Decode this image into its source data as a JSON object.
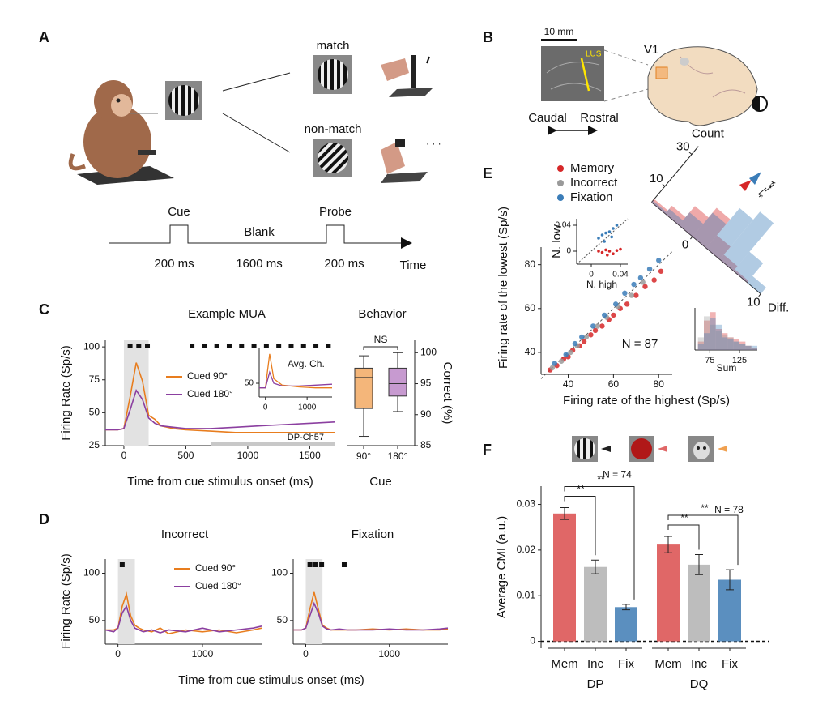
{
  "figure": {
    "panel_labels": [
      "A",
      "B",
      "C",
      "D",
      "E",
      "F"
    ],
    "task": {
      "match": "match",
      "nonmatch": "non-match",
      "cue": "Cue",
      "blank": "Blank",
      "probe": "Probe",
      "cue_duration": "200 ms",
      "blank_duration": "1600 ms",
      "probe_duration": "200 ms",
      "time": "Time"
    },
    "anatomy": {
      "scale": "10 mm",
      "sulcus": "LUS",
      "area": "V1",
      "caudal": "Caudal",
      "rostral": "Rostral"
    }
  },
  "chart_data": [
    {
      "type": "line",
      "title": "Example MUA",
      "xlabel": "Time from cue stimulus onset (ms)",
      "ylabel": "Firing Rate (Sp/s)",
      "annotation": "DP-Ch57",
      "x": [
        -150,
        -50,
        0,
        50,
        100,
        150,
        200,
        250,
        300,
        400,
        500,
        700,
        900,
        1100,
        1300,
        1500,
        1700
      ],
      "series": [
        {
          "name": "Cued 90°",
          "color": "#e87d1e",
          "values": [
            37,
            37,
            38,
            62,
            88,
            74,
            48,
            45,
            40,
            38,
            37,
            36,
            35,
            35,
            35,
            35,
            35
          ]
        },
        {
          "name": "Cued 180°",
          "color": "#8b3fa0",
          "values": [
            37,
            37,
            38,
            52,
            67,
            60,
            46,
            42,
            40,
            39,
            38,
            38,
            39,
            40,
            41,
            42,
            43
          ]
        }
      ],
      "xlim": [
        -150,
        1700
      ],
      "xticks": [
        0,
        500,
        1000,
        1500
      ],
      "ylim": [
        25,
        105
      ],
      "yticks": [
        25,
        50,
        75,
        100
      ],
      "stim_window": [
        0,
        200
      ],
      "sig_x": [
        50,
        120,
        190,
        550,
        650,
        750,
        850,
        950,
        1050,
        1150,
        1250,
        1350,
        1450,
        1550,
        1650
      ],
      "inset": {
        "title": "Avg. Ch.",
        "x": [
          -150,
          0,
          100,
          200,
          400,
          800,
          1200,
          1600
        ],
        "series": [
          {
            "color": "#e87d1e",
            "values": [
              45,
              45,
              82,
              55,
              48,
              46,
              45,
              45
            ]
          },
          {
            "color": "#8b3fa0",
            "values": [
              45,
              45,
              62,
              50,
              47,
              47,
              48,
              49
            ]
          }
        ],
        "xlim": [
          -150,
          1600
        ],
        "xticks": [
          0,
          1000
        ],
        "ylim": [
          35,
          88
        ],
        "yticks": [
          50
        ]
      }
    },
    {
      "type": "box",
      "title": "Behavior",
      "xlabel": "Cue",
      "ylabel": "Correct (%)",
      "annotation": "NS",
      "categories": [
        "90°",
        "180°"
      ],
      "colors": [
        "#f4b67a",
        "#c79ad0"
      ],
      "min": [
        86.5,
        90.5
      ],
      "q1": [
        91,
        93
      ],
      "median": [
        96,
        95
      ],
      "q3": [
        97.5,
        97.5
      ],
      "max": [
        99.5,
        100
      ],
      "ylim": [
        85,
        102
      ],
      "yticks": [
        85,
        90,
        95,
        100
      ]
    },
    {
      "type": "line",
      "title": "Incorrect",
      "xlabel": "Time from cue stimulus onset (ms)",
      "ylabel": "Firing Rate (Sp/s)",
      "x": [
        -150,
        -50,
        0,
        50,
        100,
        150,
        200,
        250,
        300,
        400,
        500,
        600,
        800,
        1000,
        1200,
        1400,
        1600,
        1700
      ],
      "series": [
        {
          "name": "Cued 90°",
          "color": "#e87d1e",
          "values": [
            40,
            40,
            42,
            65,
            78,
            55,
            45,
            42,
            40,
            38,
            42,
            36,
            40,
            38,
            40,
            37,
            40,
            42
          ]
        },
        {
          "name": "Cued 180°",
          "color": "#8b3fa0",
          "values": [
            40,
            38,
            42,
            58,
            65,
            50,
            42,
            40,
            38,
            40,
            37,
            40,
            38,
            42,
            38,
            40,
            42,
            44
          ]
        }
      ],
      "xlim": [
        -150,
        1700
      ],
      "xticks": [
        0,
        1000
      ],
      "ylim": [
        25,
        115
      ],
      "yticks": [
        50,
        100
      ],
      "stim_window": [
        0,
        200
      ],
      "sig_x": [
        50
      ]
    },
    {
      "type": "line",
      "title": "Fixation",
      "x": [
        -150,
        -50,
        0,
        50,
        100,
        150,
        200,
        250,
        300,
        400,
        500,
        600,
        800,
        1000,
        1200,
        1400,
        1600,
        1700
      ],
      "series": [
        {
          "name": "Cued 90°",
          "color": "#e87d1e",
          "values": [
            40,
            40,
            42,
            62,
            80,
            62,
            45,
            42,
            40,
            40,
            40,
            40,
            41,
            40,
            41,
            40,
            40,
            41
          ]
        },
        {
          "name": "Cued 180°",
          "color": "#8b3fa0",
          "values": [
            40,
            40,
            42,
            55,
            68,
            58,
            44,
            41,
            40,
            41,
            40,
            40,
            40,
            41,
            40,
            40,
            41,
            42
          ]
        }
      ],
      "xlim": [
        -150,
        1700
      ],
      "xticks": [
        0,
        1000
      ],
      "ylim": [
        25,
        115
      ],
      "yticks": [
        50,
        100
      ],
      "stim_window": [
        0,
        200
      ],
      "sig_x": [
        50,
        120,
        190,
        460
      ]
    },
    {
      "type": "scatter",
      "xlabel": "Firing rate of the highest (Sp/s)",
      "ylabel": "Firing rate of the lowest (Sp/s)",
      "annotation": "N = 87",
      "series": [
        {
          "name": "Memory",
          "color": "#d62728",
          "x": [
            32,
            35,
            38,
            40,
            42,
            45,
            47,
            50,
            52,
            55,
            58,
            60,
            63,
            66,
            70,
            74,
            78,
            81
          ],
          "y": [
            32,
            34,
            37,
            38,
            41,
            43,
            45,
            48,
            50,
            52,
            55,
            57,
            60,
            62,
            66,
            70,
            73,
            77
          ]
        },
        {
          "name": "Incorrect",
          "color": "#9a9a9a",
          "x": [
            33,
            37,
            41,
            44,
            48,
            53,
            57,
            62,
            68,
            73
          ],
          "y": [
            33,
            36,
            40,
            43,
            47,
            52,
            56,
            61,
            66,
            72
          ]
        },
        {
          "name": "Fixation",
          "color": "#3b7db8",
          "x": [
            34,
            39,
            43,
            46,
            51,
            56,
            61,
            65,
            69,
            72,
            76,
            80
          ],
          "y": [
            35,
            39,
            44,
            47,
            52,
            57,
            62,
            67,
            71,
            74,
            78,
            82
          ]
        }
      ],
      "xlim": [
        28,
        86
      ],
      "xticks": [
        40,
        60,
        80
      ],
      "ylim": [
        30,
        88
      ],
      "yticks": [
        40,
        60,
        80
      ],
      "inset": {
        "xlabel": "N. high",
        "ylabel": "N. low",
        "series": [
          {
            "color": "#3b7db8",
            "x": [
              0.01,
              0.015,
              0.02,
              0.025,
              0.03,
              0.035,
              0.018,
              0.028
            ],
            "y": [
              0.02,
              0.025,
              0.028,
              0.03,
              0.035,
              0.04,
              0.015,
              0.022
            ]
          },
          {
            "color": "#d62728",
            "x": [
              0.01,
              0.015,
              0.02,
              0.025,
              0.03,
              0.035,
              0.04,
              0.022
            ],
            "y": [
              0.0,
              -0.002,
              0.002,
              0.0,
              -0.004,
              0.001,
              0.003,
              -0.006
            ]
          }
        ],
        "xlim": [
          -0.02,
          0.05
        ],
        "xticks": [
          0,
          0.04
        ],
        "ylim": [
          -0.02,
          0.05
        ],
        "yticks": [
          0,
          0.04
        ]
      },
      "sum_hist": {
        "xlabel": "Sum",
        "bins": [
          55,
          65,
          75,
          85,
          95,
          105,
          115,
          125,
          135,
          145,
          155
        ],
        "series": [
          {
            "color": "#d62728",
            "values": [
              4,
              14,
              18,
              10,
              8,
              6,
              5,
              4,
              2,
              1
            ]
          },
          {
            "color": "#9a9a9a",
            "values": [
              6,
              16,
              12,
              9,
              7,
              6,
              4,
              3,
              2,
              1
            ]
          },
          {
            "color": "#3b7db8",
            "values": [
              3,
              8,
              15,
              12,
              6,
              5,
              4,
              3,
              2,
              2
            ]
          }
        ],
        "xlim": [
          50,
          155
        ],
        "xticks": [
          75,
          125
        ],
        "ylim": [
          0,
          20
        ]
      },
      "diff_hist": {
        "xlabel": "Diff.",
        "ylabel": "Count",
        "bins": [
          -6,
          -4,
          -2,
          0,
          2,
          4,
          6,
          8,
          10
        ],
        "series": [
          {
            "color": "#d62728",
            "values": [
              2,
              5,
              12,
              18,
              8,
              3,
              1,
              0
            ]
          },
          {
            "color": "#3b7db8",
            "values": [
              1,
              3,
              8,
              15,
              25,
              30,
              12,
              4
            ]
          }
        ],
        "xlim": [
          -6,
          10
        ],
        "xticks": [
          0,
          10
        ],
        "ylim": [
          0,
          35
        ],
        "yticks": [
          10,
          30
        ],
        "significance": [
          "*",
          "**"
        ]
      }
    },
    {
      "type": "bar",
      "ylabel": "Average CMI (a.u.)",
      "categories": [
        "Mem",
        "Inc",
        "Fix"
      ],
      "colors": [
        "#e06767",
        "#bdbdbd",
        "#5b8fbf"
      ],
      "series": [
        {
          "name": "DP",
          "values": [
            0.028,
            0.0163,
            0.0075
          ],
          "errors": [
            0.0013,
            0.0015,
            0.0006
          ]
        },
        {
          "name": "DQ",
          "values": [
            0.0212,
            0.0168,
            0.0135
          ],
          "errors": [
            0.0018,
            0.0022,
            0.0022
          ]
        }
      ],
      "annotations": [
        "N = 74",
        "N = 78"
      ],
      "significance": "**",
      "ylim": [
        -0.0015,
        0.034
      ],
      "yticks": [
        0,
        0.01,
        0.02,
        0.03
      ]
    }
  ]
}
